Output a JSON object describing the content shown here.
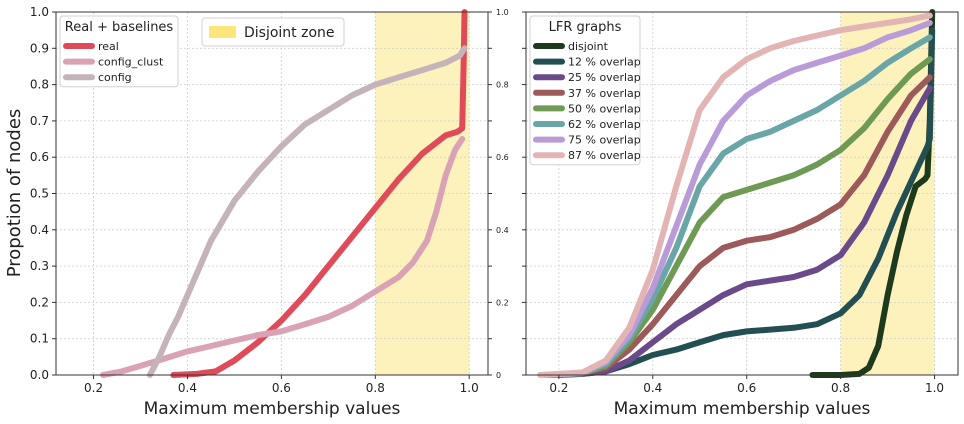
{
  "figure": {
    "ylabel": "Propotion of nodes"
  },
  "chart_data": [
    {
      "type": "line",
      "xlabel": "Maximum membership values",
      "ylabel": "Propotion of nodes",
      "xlim": [
        0.12,
        1.04
      ],
      "ylim": [
        0,
        1
      ],
      "xticks": [
        "0.2",
        "0.4",
        "0.6",
        "0.8",
        "1.0"
      ],
      "yticks": [
        "0.0",
        "0.1",
        "0.2",
        "0.3",
        "0.4",
        "0.5",
        "0.6",
        "0.7",
        "0.8",
        "0.9",
        "1.0"
      ],
      "yticks_right": [
        "0",
        "0.2",
        "0.4",
        "0.6",
        "0.8",
        "1.0"
      ],
      "grid": true,
      "shaded_region": {
        "x": [
          0.8,
          1.0
        ],
        "color": "#fef2bc",
        "label": "Disjoint zone"
      },
      "legend": {
        "title": "Real + baselines",
        "position": "top-left"
      },
      "series": [
        {
          "name": "real",
          "color": "#e04b5a",
          "x": [
            0.37,
            0.42,
            0.46,
            0.5,
            0.55,
            0.6,
            0.65,
            0.7,
            0.75,
            0.8,
            0.85,
            0.9,
            0.95,
            0.975,
            0.985,
            0.988,
            0.99
          ],
          "y": [
            0.0,
            0.003,
            0.01,
            0.04,
            0.09,
            0.15,
            0.22,
            0.3,
            0.38,
            0.46,
            0.54,
            0.61,
            0.66,
            0.67,
            0.68,
            0.85,
            1.0
          ]
        },
        {
          "name": "config_clust",
          "color": "#d9a3b5",
          "x": [
            0.22,
            0.26,
            0.3,
            0.35,
            0.4,
            0.45,
            0.5,
            0.55,
            0.6,
            0.65,
            0.7,
            0.75,
            0.8,
            0.85,
            0.88,
            0.91,
            0.93,
            0.95,
            0.97,
            0.985
          ],
          "y": [
            0.0,
            0.01,
            0.025,
            0.045,
            0.065,
            0.08,
            0.095,
            0.11,
            0.12,
            0.14,
            0.16,
            0.19,
            0.23,
            0.27,
            0.31,
            0.37,
            0.45,
            0.55,
            0.62,
            0.65
          ]
        },
        {
          "name": "config",
          "color": "#c4b3b9",
          "x": [
            0.32,
            0.34,
            0.36,
            0.38,
            0.4,
            0.45,
            0.5,
            0.55,
            0.6,
            0.65,
            0.7,
            0.75,
            0.8,
            0.85,
            0.9,
            0.95,
            0.98,
            0.99
          ],
          "y": [
            0.0,
            0.05,
            0.11,
            0.16,
            0.22,
            0.37,
            0.48,
            0.56,
            0.63,
            0.69,
            0.73,
            0.77,
            0.8,
            0.82,
            0.84,
            0.86,
            0.88,
            0.9
          ]
        }
      ]
    },
    {
      "type": "line",
      "xlabel": "Maximum membership values",
      "xlim": [
        0.13,
        1.05
      ],
      "ylim": [
        0,
        1
      ],
      "xticks": [
        "0.2",
        "0.4",
        "0.6",
        "0.8",
        "1.0"
      ],
      "yticks": [
        "0.0",
        "0.1",
        "0.2",
        "0.3",
        "0.4",
        "0.5",
        "0.6",
        "0.7",
        "0.8",
        "0.9",
        "1.0"
      ],
      "grid": true,
      "shaded_region": {
        "x": [
          0.8,
          1.0
        ],
        "color": "#fef2bc"
      },
      "legend": {
        "title": "LFR graphs",
        "position": "top-left"
      },
      "series": [
        {
          "name": "disjoint",
          "color": "#1e3a1c",
          "x": [
            0.74,
            0.8,
            0.84,
            0.86,
            0.88,
            0.9,
            0.92,
            0.94,
            0.96,
            0.98,
            0.985,
            0.99,
            0.995
          ],
          "y": [
            0.0,
            0.0,
            0.003,
            0.02,
            0.08,
            0.22,
            0.34,
            0.44,
            0.52,
            0.54,
            0.55,
            0.7,
            1.0
          ]
        },
        {
          "name": "12 % overlap",
          "color": "#234e52",
          "x": [
            0.2,
            0.25,
            0.3,
            0.35,
            0.4,
            0.45,
            0.5,
            0.55,
            0.6,
            0.65,
            0.7,
            0.75,
            0.8,
            0.84,
            0.88,
            0.92,
            0.96,
            0.985,
            0.99,
            0.995
          ],
          "y": [
            0.0,
            0.003,
            0.01,
            0.03,
            0.055,
            0.07,
            0.09,
            0.11,
            0.12,
            0.125,
            0.13,
            0.14,
            0.17,
            0.22,
            0.32,
            0.45,
            0.56,
            0.63,
            0.65,
            0.95
          ]
        },
        {
          "name": "25 % overlap",
          "color": "#6b4a8a",
          "x": [
            0.18,
            0.25,
            0.3,
            0.35,
            0.4,
            0.45,
            0.5,
            0.55,
            0.6,
            0.65,
            0.7,
            0.75,
            0.8,
            0.85,
            0.9,
            0.95,
            0.99
          ],
          "y": [
            0.0,
            0.003,
            0.01,
            0.04,
            0.09,
            0.14,
            0.18,
            0.22,
            0.25,
            0.26,
            0.27,
            0.29,
            0.33,
            0.42,
            0.55,
            0.7,
            0.79
          ]
        },
        {
          "name": "37 % overlap",
          "color": "#9c5a5a",
          "x": [
            0.18,
            0.25,
            0.3,
            0.35,
            0.4,
            0.45,
            0.5,
            0.55,
            0.6,
            0.65,
            0.7,
            0.75,
            0.8,
            0.85,
            0.9,
            0.95,
            0.99
          ],
          "y": [
            0.0,
            0.005,
            0.02,
            0.07,
            0.14,
            0.22,
            0.3,
            0.35,
            0.37,
            0.38,
            0.4,
            0.43,
            0.47,
            0.55,
            0.67,
            0.77,
            0.82
          ]
        },
        {
          "name": "50 % overlap",
          "color": "#6e9a55",
          "x": [
            0.17,
            0.25,
            0.3,
            0.35,
            0.4,
            0.45,
            0.5,
            0.55,
            0.6,
            0.65,
            0.7,
            0.75,
            0.8,
            0.85,
            0.9,
            0.95,
            0.99
          ],
          "y": [
            0.0,
            0.005,
            0.025,
            0.09,
            0.18,
            0.3,
            0.42,
            0.49,
            0.51,
            0.53,
            0.55,
            0.58,
            0.62,
            0.68,
            0.76,
            0.83,
            0.87
          ]
        },
        {
          "name": "62 % overlap",
          "color": "#6aa5a8",
          "x": [
            0.17,
            0.25,
            0.3,
            0.35,
            0.4,
            0.45,
            0.5,
            0.55,
            0.6,
            0.65,
            0.7,
            0.75,
            0.8,
            0.85,
            0.9,
            0.95,
            0.99
          ],
          "y": [
            0.0,
            0.005,
            0.03,
            0.1,
            0.21,
            0.35,
            0.52,
            0.61,
            0.65,
            0.67,
            0.7,
            0.73,
            0.77,
            0.81,
            0.86,
            0.9,
            0.93
          ]
        },
        {
          "name": "75 % overlap",
          "color": "#b99bd8",
          "x": [
            0.17,
            0.25,
            0.3,
            0.35,
            0.4,
            0.45,
            0.5,
            0.55,
            0.6,
            0.65,
            0.7,
            0.75,
            0.8,
            0.85,
            0.9,
            0.95,
            0.99
          ],
          "y": [
            0.0,
            0.006,
            0.035,
            0.11,
            0.24,
            0.41,
            0.58,
            0.7,
            0.77,
            0.81,
            0.84,
            0.86,
            0.88,
            0.9,
            0.93,
            0.95,
            0.97
          ]
        },
        {
          "name": "87 % overlap",
          "color": "#e3b4b4",
          "x": [
            0.16,
            0.25,
            0.3,
            0.35,
            0.4,
            0.45,
            0.5,
            0.55,
            0.6,
            0.65,
            0.7,
            0.75,
            0.8,
            0.85,
            0.9,
            0.95,
            0.99
          ],
          "y": [
            0.0,
            0.007,
            0.04,
            0.13,
            0.29,
            0.52,
            0.73,
            0.82,
            0.87,
            0.9,
            0.92,
            0.935,
            0.95,
            0.96,
            0.97,
            0.98,
            0.99
          ]
        }
      ]
    }
  ]
}
